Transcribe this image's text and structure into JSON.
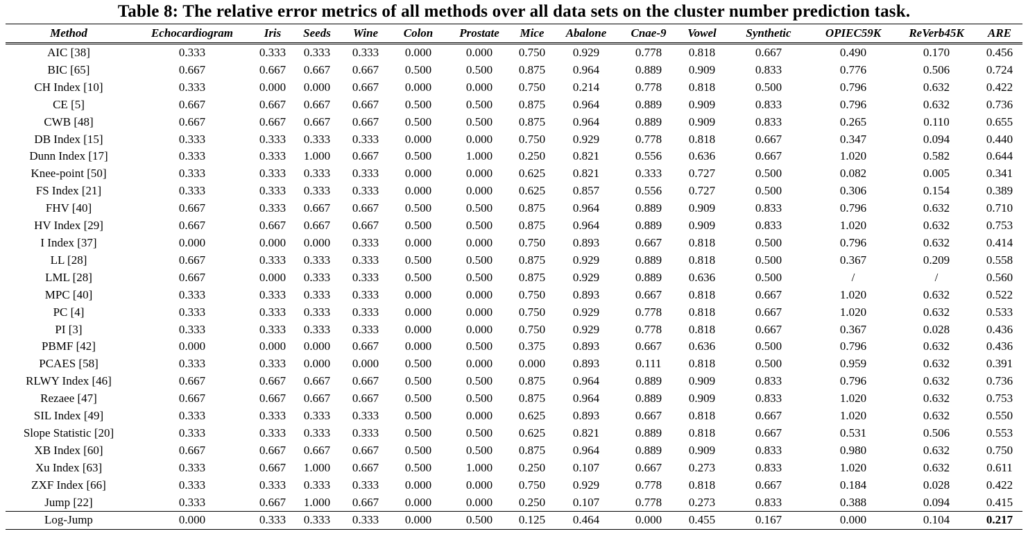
{
  "caption": "Table 8: The relative error metrics of all methods over all data sets on the cluster number prediction task.",
  "table": {
    "headers": [
      "Method",
      "Echocardiogram",
      "Iris",
      "Seeds",
      "Wine",
      "Colon",
      "Prostate",
      "Mice",
      "Abalone",
      "Cnae-9",
      "Vowel",
      "Synthetic",
      "OPIEC59K",
      "ReVerb45K",
      "ARE"
    ],
    "rows": [
      [
        "AIC [38]",
        "0.333",
        "0.333",
        "0.333",
        "0.333",
        "0.000",
        "0.000",
        "0.750",
        "0.929",
        "0.778",
        "0.818",
        "0.667",
        "0.490",
        "0.170",
        "0.456"
      ],
      [
        "BIC [65]",
        "0.667",
        "0.667",
        "0.667",
        "0.667",
        "0.500",
        "0.500",
        "0.875",
        "0.964",
        "0.889",
        "0.909",
        "0.833",
        "0.776",
        "0.506",
        "0.724"
      ],
      [
        "CH Index [10]",
        "0.333",
        "0.000",
        "0.000",
        "0.667",
        "0.000",
        "0.000",
        "0.750",
        "0.214",
        "0.778",
        "0.818",
        "0.500",
        "0.796",
        "0.632",
        "0.422"
      ],
      [
        "CE [5]",
        "0.667",
        "0.667",
        "0.667",
        "0.667",
        "0.500",
        "0.500",
        "0.875",
        "0.964",
        "0.889",
        "0.909",
        "0.833",
        "0.796",
        "0.632",
        "0.736"
      ],
      [
        "CWB [48]",
        "0.667",
        "0.667",
        "0.667",
        "0.667",
        "0.500",
        "0.500",
        "0.875",
        "0.964",
        "0.889",
        "0.909",
        "0.833",
        "0.265",
        "0.110",
        "0.655"
      ],
      [
        "DB Index [15]",
        "0.333",
        "0.333",
        "0.333",
        "0.333",
        "0.000",
        "0.000",
        "0.750",
        "0.929",
        "0.778",
        "0.818",
        "0.667",
        "0.347",
        "0.094",
        "0.440"
      ],
      [
        "Dunn Index [17]",
        "0.333",
        "0.333",
        "1.000",
        "0.667",
        "0.500",
        "1.000",
        "0.250",
        "0.821",
        "0.556",
        "0.636",
        "0.667",
        "1.020",
        "0.582",
        "0.644"
      ],
      [
        "Knee-point [50]",
        "0.333",
        "0.333",
        "0.333",
        "0.333",
        "0.000",
        "0.000",
        "0.625",
        "0.821",
        "0.333",
        "0.727",
        "0.500",
        "0.082",
        "0.005",
        "0.341"
      ],
      [
        "FS Index [21]",
        "0.333",
        "0.333",
        "0.333",
        "0.333",
        "0.000",
        "0.000",
        "0.625",
        "0.857",
        "0.556",
        "0.727",
        "0.500",
        "0.306",
        "0.154",
        "0.389"
      ],
      [
        "FHV [40]",
        "0.667",
        "0.333",
        "0.667",
        "0.667",
        "0.500",
        "0.500",
        "0.875",
        "0.964",
        "0.889",
        "0.909",
        "0.833",
        "0.796",
        "0.632",
        "0.710"
      ],
      [
        "HV Index [29]",
        "0.667",
        "0.667",
        "0.667",
        "0.667",
        "0.500",
        "0.500",
        "0.875",
        "0.964",
        "0.889",
        "0.909",
        "0.833",
        "1.020",
        "0.632",
        "0.753"
      ],
      [
        "I Index [37]",
        "0.000",
        "0.000",
        "0.000",
        "0.333",
        "0.000",
        "0.000",
        "0.750",
        "0.893",
        "0.667",
        "0.818",
        "0.500",
        "0.796",
        "0.632",
        "0.414"
      ],
      [
        "LL [28]",
        "0.667",
        "0.333",
        "0.333",
        "0.333",
        "0.500",
        "0.500",
        "0.875",
        "0.929",
        "0.889",
        "0.818",
        "0.500",
        "0.367",
        "0.209",
        "0.558"
      ],
      [
        "LML [28]",
        "0.667",
        "0.000",
        "0.333",
        "0.333",
        "0.500",
        "0.500",
        "0.875",
        "0.929",
        "0.889",
        "0.636",
        "0.500",
        "/",
        "/",
        "0.560"
      ],
      [
        "MPC [40]",
        "0.333",
        "0.333",
        "0.333",
        "0.333",
        "0.000",
        "0.000",
        "0.750",
        "0.893",
        "0.667",
        "0.818",
        "0.667",
        "1.020",
        "0.632",
        "0.522"
      ],
      [
        "PC [4]",
        "0.333",
        "0.333",
        "0.333",
        "0.333",
        "0.000",
        "0.000",
        "0.750",
        "0.929",
        "0.778",
        "0.818",
        "0.667",
        "1.020",
        "0.632",
        "0.533"
      ],
      [
        "PI [3]",
        "0.333",
        "0.333",
        "0.333",
        "0.333",
        "0.000",
        "0.000",
        "0.750",
        "0.929",
        "0.778",
        "0.818",
        "0.667",
        "0.367",
        "0.028",
        "0.436"
      ],
      [
        "PBMF [42]",
        "0.000",
        "0.000",
        "0.000",
        "0.667",
        "0.000",
        "0.500",
        "0.375",
        "0.893",
        "0.667",
        "0.636",
        "0.500",
        "0.796",
        "0.632",
        "0.436"
      ],
      [
        "PCAES [58]",
        "0.333",
        "0.333",
        "0.000",
        "0.000",
        "0.500",
        "0.000",
        "0.000",
        "0.893",
        "0.111",
        "0.818",
        "0.500",
        "0.959",
        "0.632",
        "0.391"
      ],
      [
        "RLWY Index [46]",
        "0.667",
        "0.667",
        "0.667",
        "0.667",
        "0.500",
        "0.500",
        "0.875",
        "0.964",
        "0.889",
        "0.909",
        "0.833",
        "0.796",
        "0.632",
        "0.736"
      ],
      [
        "Rezaee [47]",
        "0.667",
        "0.667",
        "0.667",
        "0.667",
        "0.500",
        "0.500",
        "0.875",
        "0.964",
        "0.889",
        "0.909",
        "0.833",
        "1.020",
        "0.632",
        "0.753"
      ],
      [
        "SIL Index [49]",
        "0.333",
        "0.333",
        "0.333",
        "0.333",
        "0.500",
        "0.000",
        "0.625",
        "0.893",
        "0.667",
        "0.818",
        "0.667",
        "1.020",
        "0.632",
        "0.550"
      ],
      [
        "Slope Statistic [20]",
        "0.333",
        "0.333",
        "0.333",
        "0.333",
        "0.500",
        "0.500",
        "0.625",
        "0.821",
        "0.889",
        "0.818",
        "0.667",
        "0.531",
        "0.506",
        "0.553"
      ],
      [
        "XB Index [60]",
        "0.667",
        "0.667",
        "0.667",
        "0.667",
        "0.500",
        "0.500",
        "0.875",
        "0.964",
        "0.889",
        "0.909",
        "0.833",
        "0.980",
        "0.632",
        "0.750"
      ],
      [
        "Xu Index [63]",
        "0.333",
        "0.667",
        "1.000",
        "0.667",
        "0.500",
        "1.000",
        "0.250",
        "0.107",
        "0.667",
        "0.273",
        "0.833",
        "1.020",
        "0.632",
        "0.611"
      ],
      [
        "ZXF Index [66]",
        "0.333",
        "0.333",
        "0.333",
        "0.333",
        "0.000",
        "0.000",
        "0.750",
        "0.929",
        "0.778",
        "0.818",
        "0.667",
        "0.184",
        "0.028",
        "0.422"
      ],
      [
        "Jump [22]",
        "0.333",
        "0.667",
        "1.000",
        "0.667",
        "0.000",
        "0.000",
        "0.250",
        "0.107",
        "0.778",
        "0.273",
        "0.833",
        "0.388",
        "0.094",
        "0.415"
      ]
    ],
    "final_row": [
      "Log-Jump",
      "0.000",
      "0.333",
      "0.333",
      "0.333",
      "0.000",
      "0.500",
      "0.125",
      "0.464",
      "0.000",
      "0.455",
      "0.167",
      "0.000",
      "0.104",
      "0.217"
    ],
    "final_row_bold_column": 14
  }
}
